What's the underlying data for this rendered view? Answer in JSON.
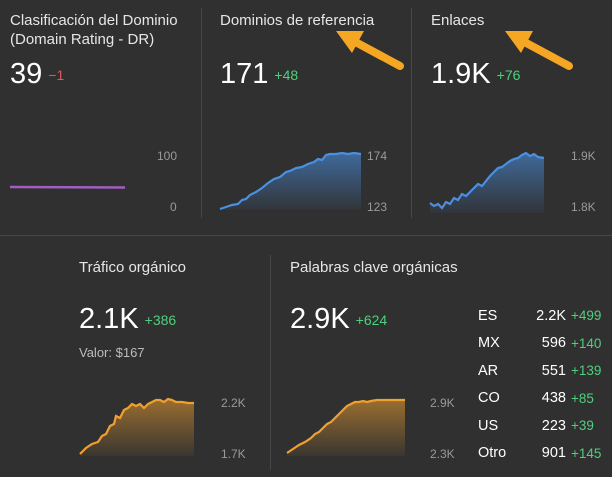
{
  "colors": {
    "background": "#303030",
    "positive": "#4fd07c",
    "negative": "#e0585a",
    "dr_line": "#a05fc0",
    "blue_line": "#4a90e2",
    "orange_line": "#f0a030",
    "arrow": "#f5a623"
  },
  "domain_rating": {
    "title": "Clasificación del Dominio (Domain Rating - DR)",
    "value": "39",
    "delta": "−1",
    "axis_top": "100",
    "axis_bottom": "0"
  },
  "referring_domains": {
    "title": "Dominios de referencia",
    "value": "171",
    "delta": "+48",
    "axis_top": "174",
    "axis_bottom": "123"
  },
  "backlinks": {
    "title": "Enlaces",
    "value": "1.9K",
    "delta": "+76",
    "axis_top": "1.9K",
    "axis_bottom": "1.8K"
  },
  "organic_traffic": {
    "title": "Tráfico orgánico",
    "value": "2.1K",
    "delta": "+386",
    "sub_label": "Valor: $167",
    "axis_top": "2.2K",
    "axis_bottom": "1.7K"
  },
  "organic_keywords": {
    "title": "Palabras clave orgánicas",
    "value": "2.9K",
    "delta": "+624",
    "axis_top": "2.9K",
    "axis_bottom": "2.3K",
    "countries": [
      {
        "code": "ES",
        "value": "2.2K",
        "delta": "+499"
      },
      {
        "code": "MX",
        "value": "596",
        "delta": "+140"
      },
      {
        "code": "AR",
        "value": "551",
        "delta": "+139"
      },
      {
        "code": "CO",
        "value": "438",
        "delta": "+85"
      },
      {
        "code": "US",
        "value": "223",
        "delta": "+39"
      },
      {
        "code": "Otro",
        "value": "901",
        "delta": "+145"
      }
    ]
  },
  "icons": [
    "arrow-icon"
  ]
}
